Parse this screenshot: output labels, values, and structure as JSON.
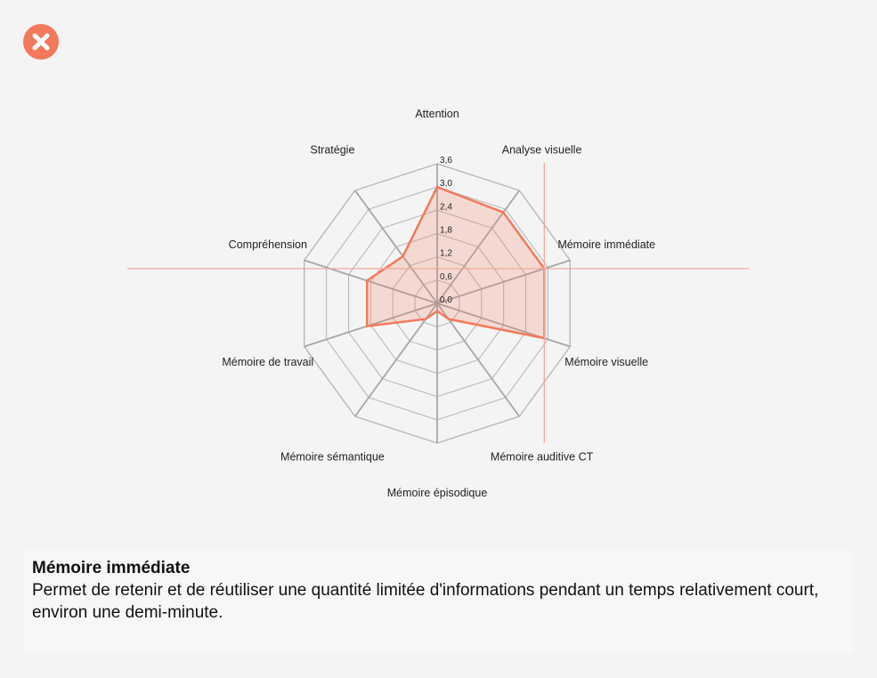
{
  "close_icon": "close-x-circle-icon",
  "colors": {
    "accent": "#f2795c",
    "fill": "rgba(242,121,92,0.22)",
    "grid": "#b4b4b4",
    "crosshair": "#f5a99a"
  },
  "chart_data": {
    "type": "radar",
    "axes": [
      "Attention",
      "Analyse visuelle",
      "Mémoire immédiate",
      "Mémoire visuelle",
      "Mémoire auditive CT",
      "Mémoire épisodique",
      "Mémoire sémantique",
      "Mémoire de travail",
      "Compréhension",
      "Stratégie"
    ],
    "values": [
      3.0,
      2.9,
      2.9,
      2.9,
      0.5,
      0.2,
      0.5,
      1.9,
      1.9,
      1.5
    ],
    "tick_labels": [
      "0,0",
      "0,6",
      "1,2",
      "1,8",
      "2,4",
      "3,0",
      "3,6"
    ],
    "range": [
      0,
      3.6
    ],
    "highlighted_axis": "Mémoire immédiate"
  },
  "info": {
    "title": "Mémoire immédiate",
    "description": "Permet de retenir et de réutiliser une quantité limitée d'informations pendant un temps relativement court, environ une demi-minute."
  }
}
